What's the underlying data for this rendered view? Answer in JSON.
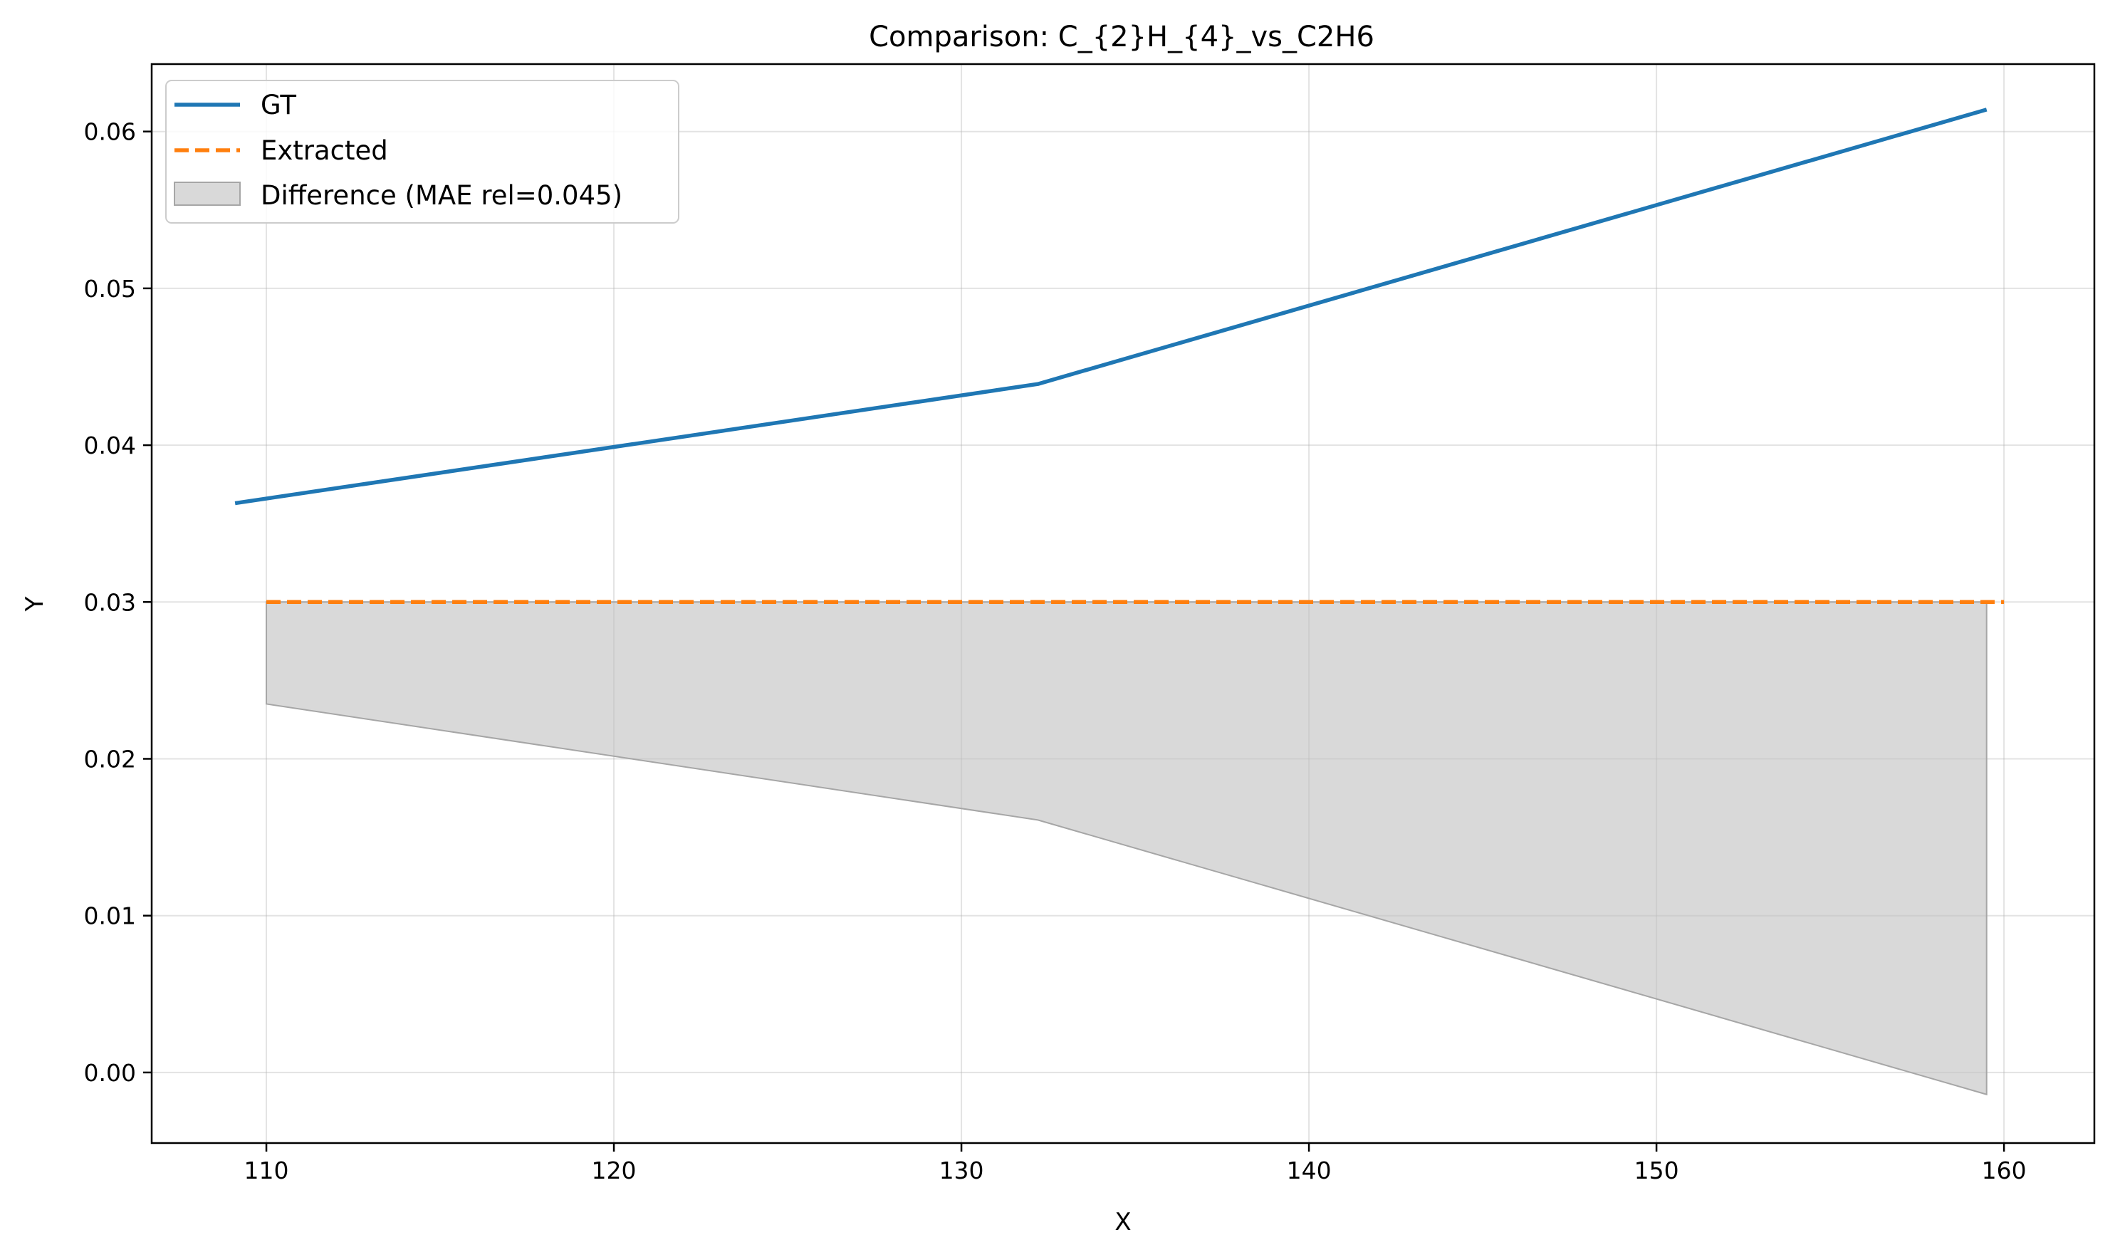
{
  "chart_data": {
    "type": "line",
    "title": "Comparison: C_{2}H_{4}_vs_C2H6",
    "xlabel": "X",
    "ylabel": "Y",
    "xlim": [
      106.7,
      162.6
    ],
    "ylim": [
      -0.0045,
      0.0643
    ],
    "xticks": [
      110,
      120,
      130,
      140,
      150,
      160
    ],
    "yticks": [
      0.0,
      0.01,
      0.02,
      0.03,
      0.04,
      0.05,
      0.06
    ],
    "xtick_labels": [
      "110",
      "120",
      "130",
      "140",
      "150",
      "160"
    ],
    "ytick_labels": [
      "0.00",
      "0.01",
      "0.02",
      "0.03",
      "0.04",
      "0.05",
      "0.06"
    ],
    "grid": true,
    "legend_position": "top-left",
    "series": [
      {
        "name": "GT",
        "style": "solid",
        "color": "#1f77b4",
        "x": [
          109.1,
          132.2,
          159.5
        ],
        "y": [
          0.0363,
          0.0439,
          0.0614
        ]
      },
      {
        "name": "Extracted",
        "style": "dashed",
        "color": "#ff7f0e",
        "x": [
          110.0,
          160.0
        ],
        "y": [
          0.03,
          0.03
        ]
      }
    ],
    "fill": {
      "name": "Difference (MAE rel=0.045)",
      "color": "#bfbfbf",
      "x": [
        110.0,
        132.2,
        159.5
      ],
      "y_upper": [
        0.03,
        0.03,
        0.03
      ],
      "y_lower": [
        0.0235,
        0.0161,
        -0.0014
      ]
    }
  }
}
